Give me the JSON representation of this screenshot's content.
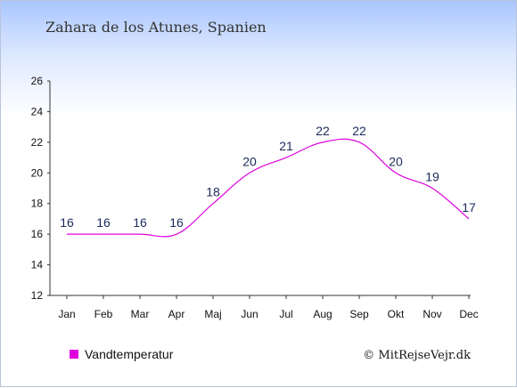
{
  "chart_data": {
    "type": "line",
    "title": "Zahara de los Atunes, Spanien",
    "categories": [
      "Jan",
      "Feb",
      "Mar",
      "Apr",
      "Maj",
      "Jun",
      "Jul",
      "Aug",
      "Sep",
      "Okt",
      "Nov",
      "Dec"
    ],
    "series": [
      {
        "name": "Vandtemperatur",
        "values": [
          16,
          16,
          16,
          16,
          18,
          20,
          21,
          22,
          22,
          20,
          19,
          17
        ],
        "color": "#dd00dd"
      }
    ],
    "ylim": [
      12,
      26
    ],
    "yticks": [
      12,
      14,
      16,
      18,
      20,
      22,
      24,
      26
    ],
    "grid": false,
    "legend_position": "bottom-left"
  },
  "credit": "© MitRejseVejr.dk"
}
